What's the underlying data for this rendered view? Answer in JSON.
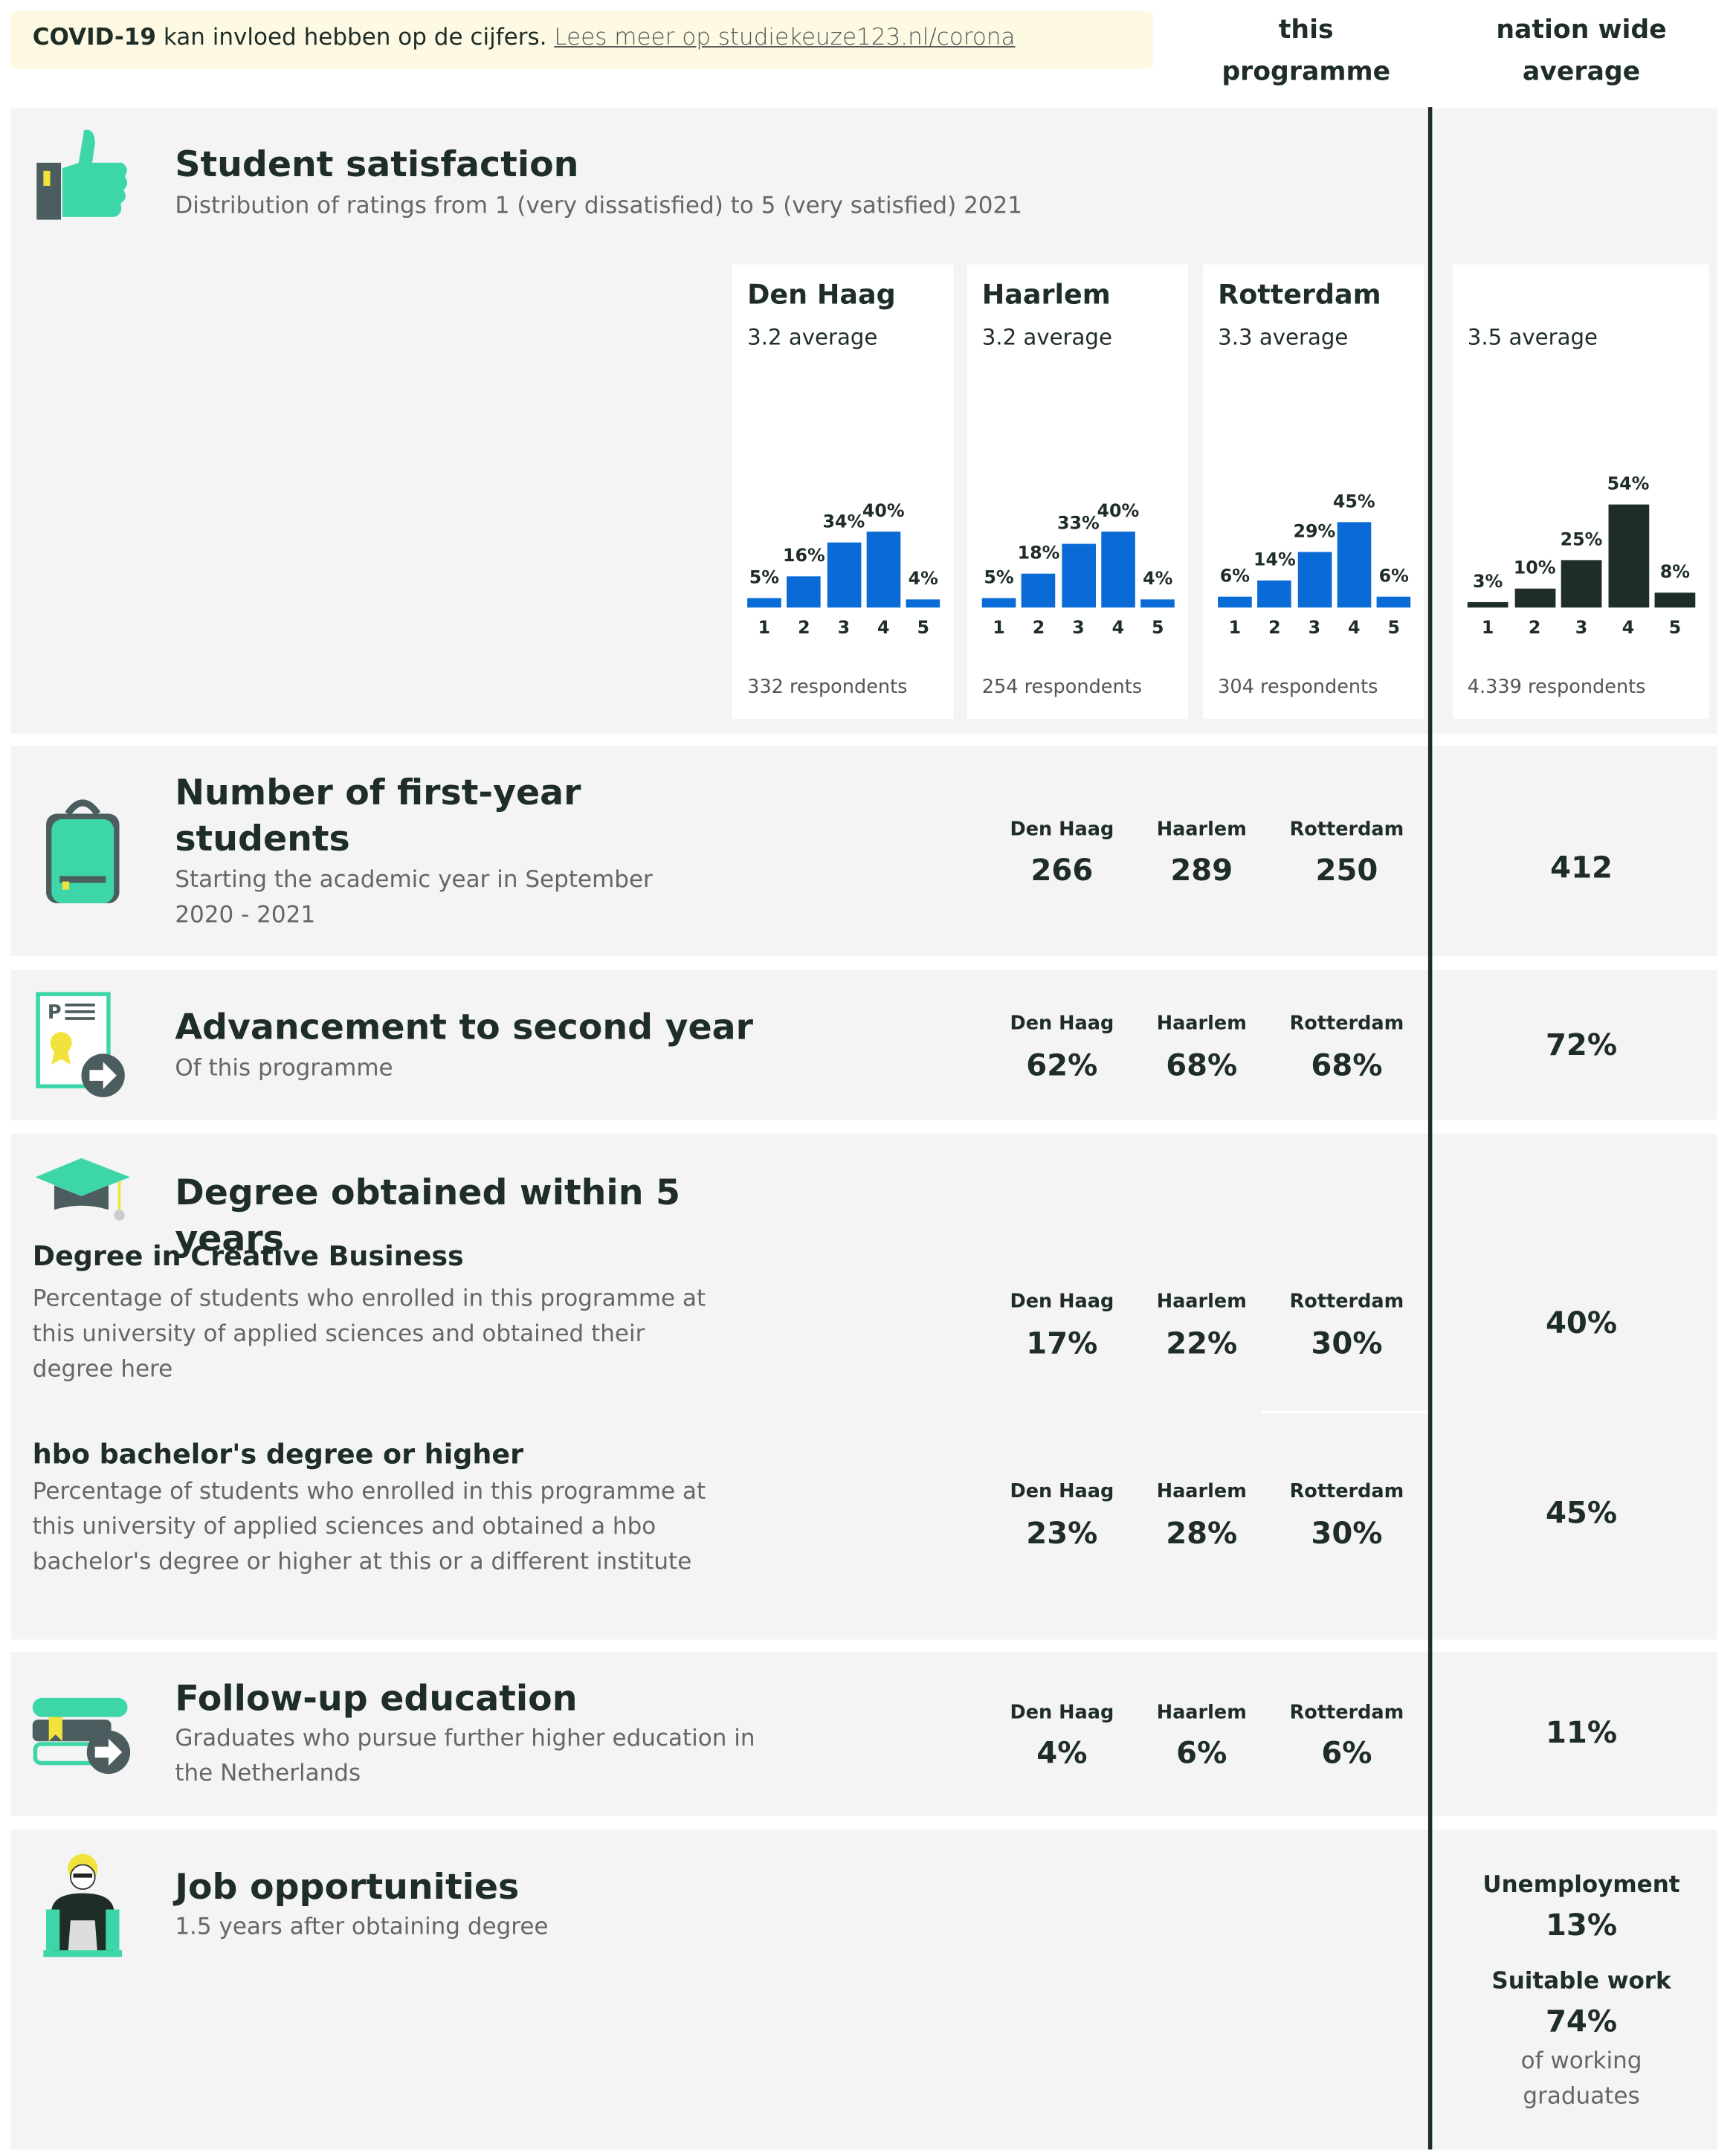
{
  "banner": {
    "bold": "COVID-19",
    "text": "kan invloed hebben op de cijfers.",
    "link": "Lees meer op studiekeuze123.nl/corona"
  },
  "columns": {
    "programme": "this programme",
    "national": "nation wide average"
  },
  "satisfaction": {
    "title": "Student satisfaction",
    "subtitle": "Distribution of ratings from 1 (very dissatisfied) to 5 (very satisfied) 2021",
    "categories": [
      "1",
      "2",
      "3",
      "4",
      "5"
    ],
    "panels": [
      {
        "name": "Den Haag",
        "average": "3.2 average",
        "values": [
          5,
          16,
          34,
          40,
          4
        ],
        "value_labels": [
          "5%",
          "16%",
          "34%",
          "40%",
          "4%"
        ],
        "respondents": "332 respondents"
      },
      {
        "name": "Haarlem",
        "average": "3.2 average",
        "values": [
          5,
          18,
          33,
          40,
          4
        ],
        "value_labels": [
          "5%",
          "18%",
          "33%",
          "40%",
          "4%"
        ],
        "respondents": "254 respondents"
      },
      {
        "name": "Rotterdam",
        "average": "3.3 average",
        "values": [
          6,
          14,
          29,
          45,
          6
        ],
        "value_labels": [
          "6%",
          "14%",
          "29%",
          "45%",
          "6%"
        ],
        "respondents": "304 respondents"
      }
    ],
    "national": {
      "average": "3.5 average",
      "values": [
        3,
        10,
        25,
        54,
        8
      ],
      "value_labels": [
        "3%",
        "10%",
        "25%",
        "54%",
        "8%"
      ],
      "respondents": "4.339 respondents"
    }
  },
  "cities": [
    "Den Haag",
    "Haarlem",
    "Rotterdam"
  ],
  "first_year": {
    "title": "Number of first-year students",
    "subtitle": "Starting the academic year in September 2020 - 2021",
    "values": [
      "266",
      "289",
      "250"
    ],
    "national": "412"
  },
  "advancement": {
    "title": "Advancement to second year",
    "subtitle": "Of this programme",
    "values": [
      "62%",
      "68%",
      "68%"
    ],
    "national": "72%"
  },
  "degree": {
    "title": "Degree obtained within 5 years",
    "items": [
      {
        "heading": "Degree in Creative Business",
        "description": "Percentage of students who enrolled in this programme at this university of applied sciences and obtained their degree here",
        "values": [
          "17%",
          "22%",
          "30%"
        ],
        "national": "40%"
      },
      {
        "heading": "hbo bachelor's degree or higher",
        "description": "Percentage of students who enrolled in this programme at this university of applied sciences and obtained a hbo bachelor's degree or higher at this or a different institute",
        "values": [
          "23%",
          "28%",
          "30%"
        ],
        "national": "45%"
      }
    ]
  },
  "follow_up": {
    "title": "Follow-up education",
    "subtitle": "Graduates who pursue further higher education in the Netherlands",
    "values": [
      "4%",
      "6%",
      "6%"
    ],
    "national": "11%"
  },
  "jobs": {
    "title": "Job opportunities",
    "subtitle": "1.5 years after obtaining degree",
    "unemployment_label": "Unemployment",
    "unemployment": "13%",
    "suitable_label": "Suitable work",
    "suitable": "74%",
    "note": "of working graduates"
  }
}
